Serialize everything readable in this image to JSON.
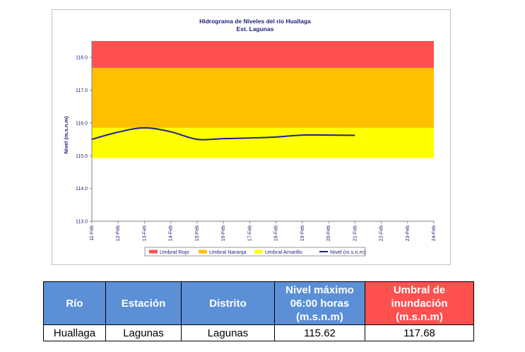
{
  "chart_data": {
    "type": "line",
    "title": "Hidrograma de Niveles del río Huallaga",
    "subtitle": "Est. Lagunas",
    "ylabel": "Nivel (m.s.n.m)",
    "xlabel": "",
    "ylim": [
      113.0,
      118.5
    ],
    "yticks": [
      "113.0",
      "114.0",
      "115.0",
      "116.0",
      "117.0",
      "118.0"
    ],
    "categories": [
      "11-Feb",
      "12-Feb",
      "13-Feb",
      "14-Feb",
      "15-Feb",
      "16-Feb",
      "17-Feb",
      "18-Feb",
      "19-Feb",
      "20-Feb",
      "21-Feb",
      "22-Feb",
      "23-Feb",
      "24-Feb"
    ],
    "bands": [
      {
        "name": "Umbral Rojo",
        "from": 117.68,
        "to": 118.5,
        "color": "#ff5050"
      },
      {
        "name": "Umbral Naranja",
        "from": 115.85,
        "to": 117.68,
        "color": "#ffc000"
      },
      {
        "name": "Umbral Amarillo",
        "from": 114.93,
        "to": 115.85,
        "color": "#ffff00"
      }
    ],
    "series": [
      {
        "name": "Nivel (m.s.n.m)",
        "color": "#1f1f8f",
        "x": [
          "11-Feb",
          "12-Feb",
          "13-Feb",
          "14-Feb",
          "15-Feb",
          "16-Feb",
          "17-Feb",
          "18-Feb",
          "19-Feb",
          "20-Feb",
          "21-Feb"
        ],
        "values": [
          115.5,
          115.72,
          115.85,
          115.73,
          115.5,
          115.52,
          115.54,
          115.57,
          115.63,
          115.63,
          115.62
        ]
      }
    ],
    "legend": [
      "Umbral Rojo",
      "Umbral Naranja",
      "Umbral Amarillo",
      "Nivel (m.s.n.m)"
    ],
    "legend_position": "bottom",
    "grid": false
  },
  "table": {
    "headers": [
      "Río",
      "Estación",
      "Distrito",
      "Nivel máximo 06:00 horas (m.s.n.m)",
      "Umbral de inundación (m.s.n.m)"
    ],
    "header_colors": [
      "#5b8fd6",
      "#5b8fd6",
      "#5b8fd6",
      "#5b8fd6",
      "#ff5050"
    ],
    "row": [
      "Huallaga",
      "Lagunas",
      "Lagunas",
      "115.62",
      "117.68"
    ]
  }
}
